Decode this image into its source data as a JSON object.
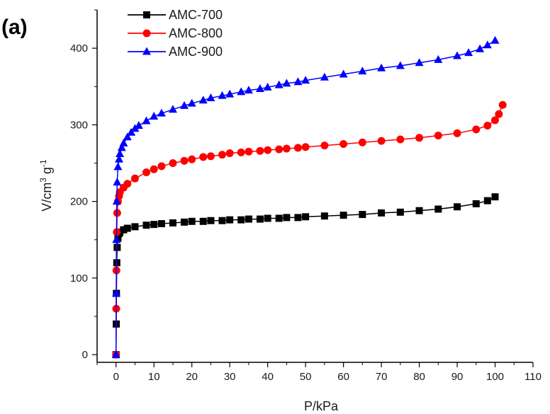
{
  "panel_label": "(a)",
  "chart_data": {
    "type": "line",
    "xlabel": "P/kPa",
    "ylabel_base": "V/cm",
    "ylabel_sup1": "3",
    "ylabel_mid": " g",
    "ylabel_sup2": "-1",
    "xlim": [
      -5,
      110
    ],
    "ylim": [
      -10,
      450
    ],
    "xticks": [
      0,
      10,
      20,
      30,
      40,
      50,
      60,
      70,
      80,
      90,
      100,
      110
    ],
    "yticks": [
      0,
      100,
      200,
      300,
      400
    ],
    "grid": false,
    "legend_position": "top-left",
    "series": [
      {
        "name": "AMC-700",
        "color": "#000000",
        "marker": "square",
        "x": [
          0,
          0.05,
          0.1,
          0.2,
          0.3,
          0.5,
          0.8,
          1,
          2,
          3,
          5,
          8,
          10,
          12,
          15,
          18,
          20,
          23,
          25,
          28,
          30,
          33,
          35,
          38,
          40,
          43,
          45,
          48,
          50,
          55,
          60,
          65,
          70,
          75,
          80,
          85,
          90,
          95,
          98,
          100
        ],
        "y": [
          0,
          40,
          80,
          120,
          140,
          152,
          158,
          160,
          163,
          165,
          167,
          169,
          170,
          171,
          172,
          173,
          174,
          174,
          175,
          175,
          176,
          176,
          177,
          177,
          178,
          178,
          179,
          179,
          180,
          181,
          182,
          183,
          185,
          186,
          188,
          190,
          193,
          197,
          201,
          206
        ]
      },
      {
        "name": "AMC-800",
        "color": "#ff0000",
        "marker": "circle",
        "x": [
          0,
          0.05,
          0.1,
          0.2,
          0.3,
          0.5,
          0.8,
          1,
          2,
          3,
          5,
          8,
          10,
          12,
          15,
          18,
          20,
          23,
          25,
          28,
          30,
          33,
          35,
          38,
          40,
          43,
          45,
          48,
          50,
          55,
          60,
          65,
          70,
          75,
          80,
          85,
          90,
          95,
          98,
          100,
          101,
          102
        ],
        "y": [
          0,
          60,
          110,
          160,
          185,
          200,
          207,
          212,
          218,
          223,
          230,
          238,
          242,
          246,
          250,
          253,
          255,
          258,
          259,
          261,
          263,
          264,
          265,
          266,
          267,
          268,
          269,
          270,
          271,
          273,
          275,
          277,
          279,
          281,
          283,
          286,
          289,
          294,
          299,
          306,
          314,
          326
        ]
      },
      {
        "name": "AMC-900",
        "color": "#0000ff",
        "marker": "triangle",
        "x": [
          0,
          0.05,
          0.1,
          0.2,
          0.3,
          0.5,
          0.8,
          1,
          1.5,
          2,
          3,
          4,
          5,
          6,
          8,
          10,
          12,
          15,
          18,
          20,
          23,
          25,
          28,
          30,
          33,
          35,
          38,
          40,
          43,
          45,
          48,
          50,
          55,
          60,
          65,
          70,
          75,
          80,
          85,
          90,
          93,
          96,
          98,
          100
        ],
        "y": [
          0,
          80,
          150,
          200,
          225,
          245,
          255,
          262,
          270,
          276,
          284,
          290,
          295,
          299,
          305,
          311,
          315,
          320,
          325,
          328,
          332,
          335,
          338,
          340,
          343,
          345,
          347,
          349,
          352,
          354,
          356,
          358,
          362,
          366,
          370,
          374,
          377,
          381,
          385,
          390,
          394,
          399,
          404,
          410
        ]
      }
    ]
  }
}
